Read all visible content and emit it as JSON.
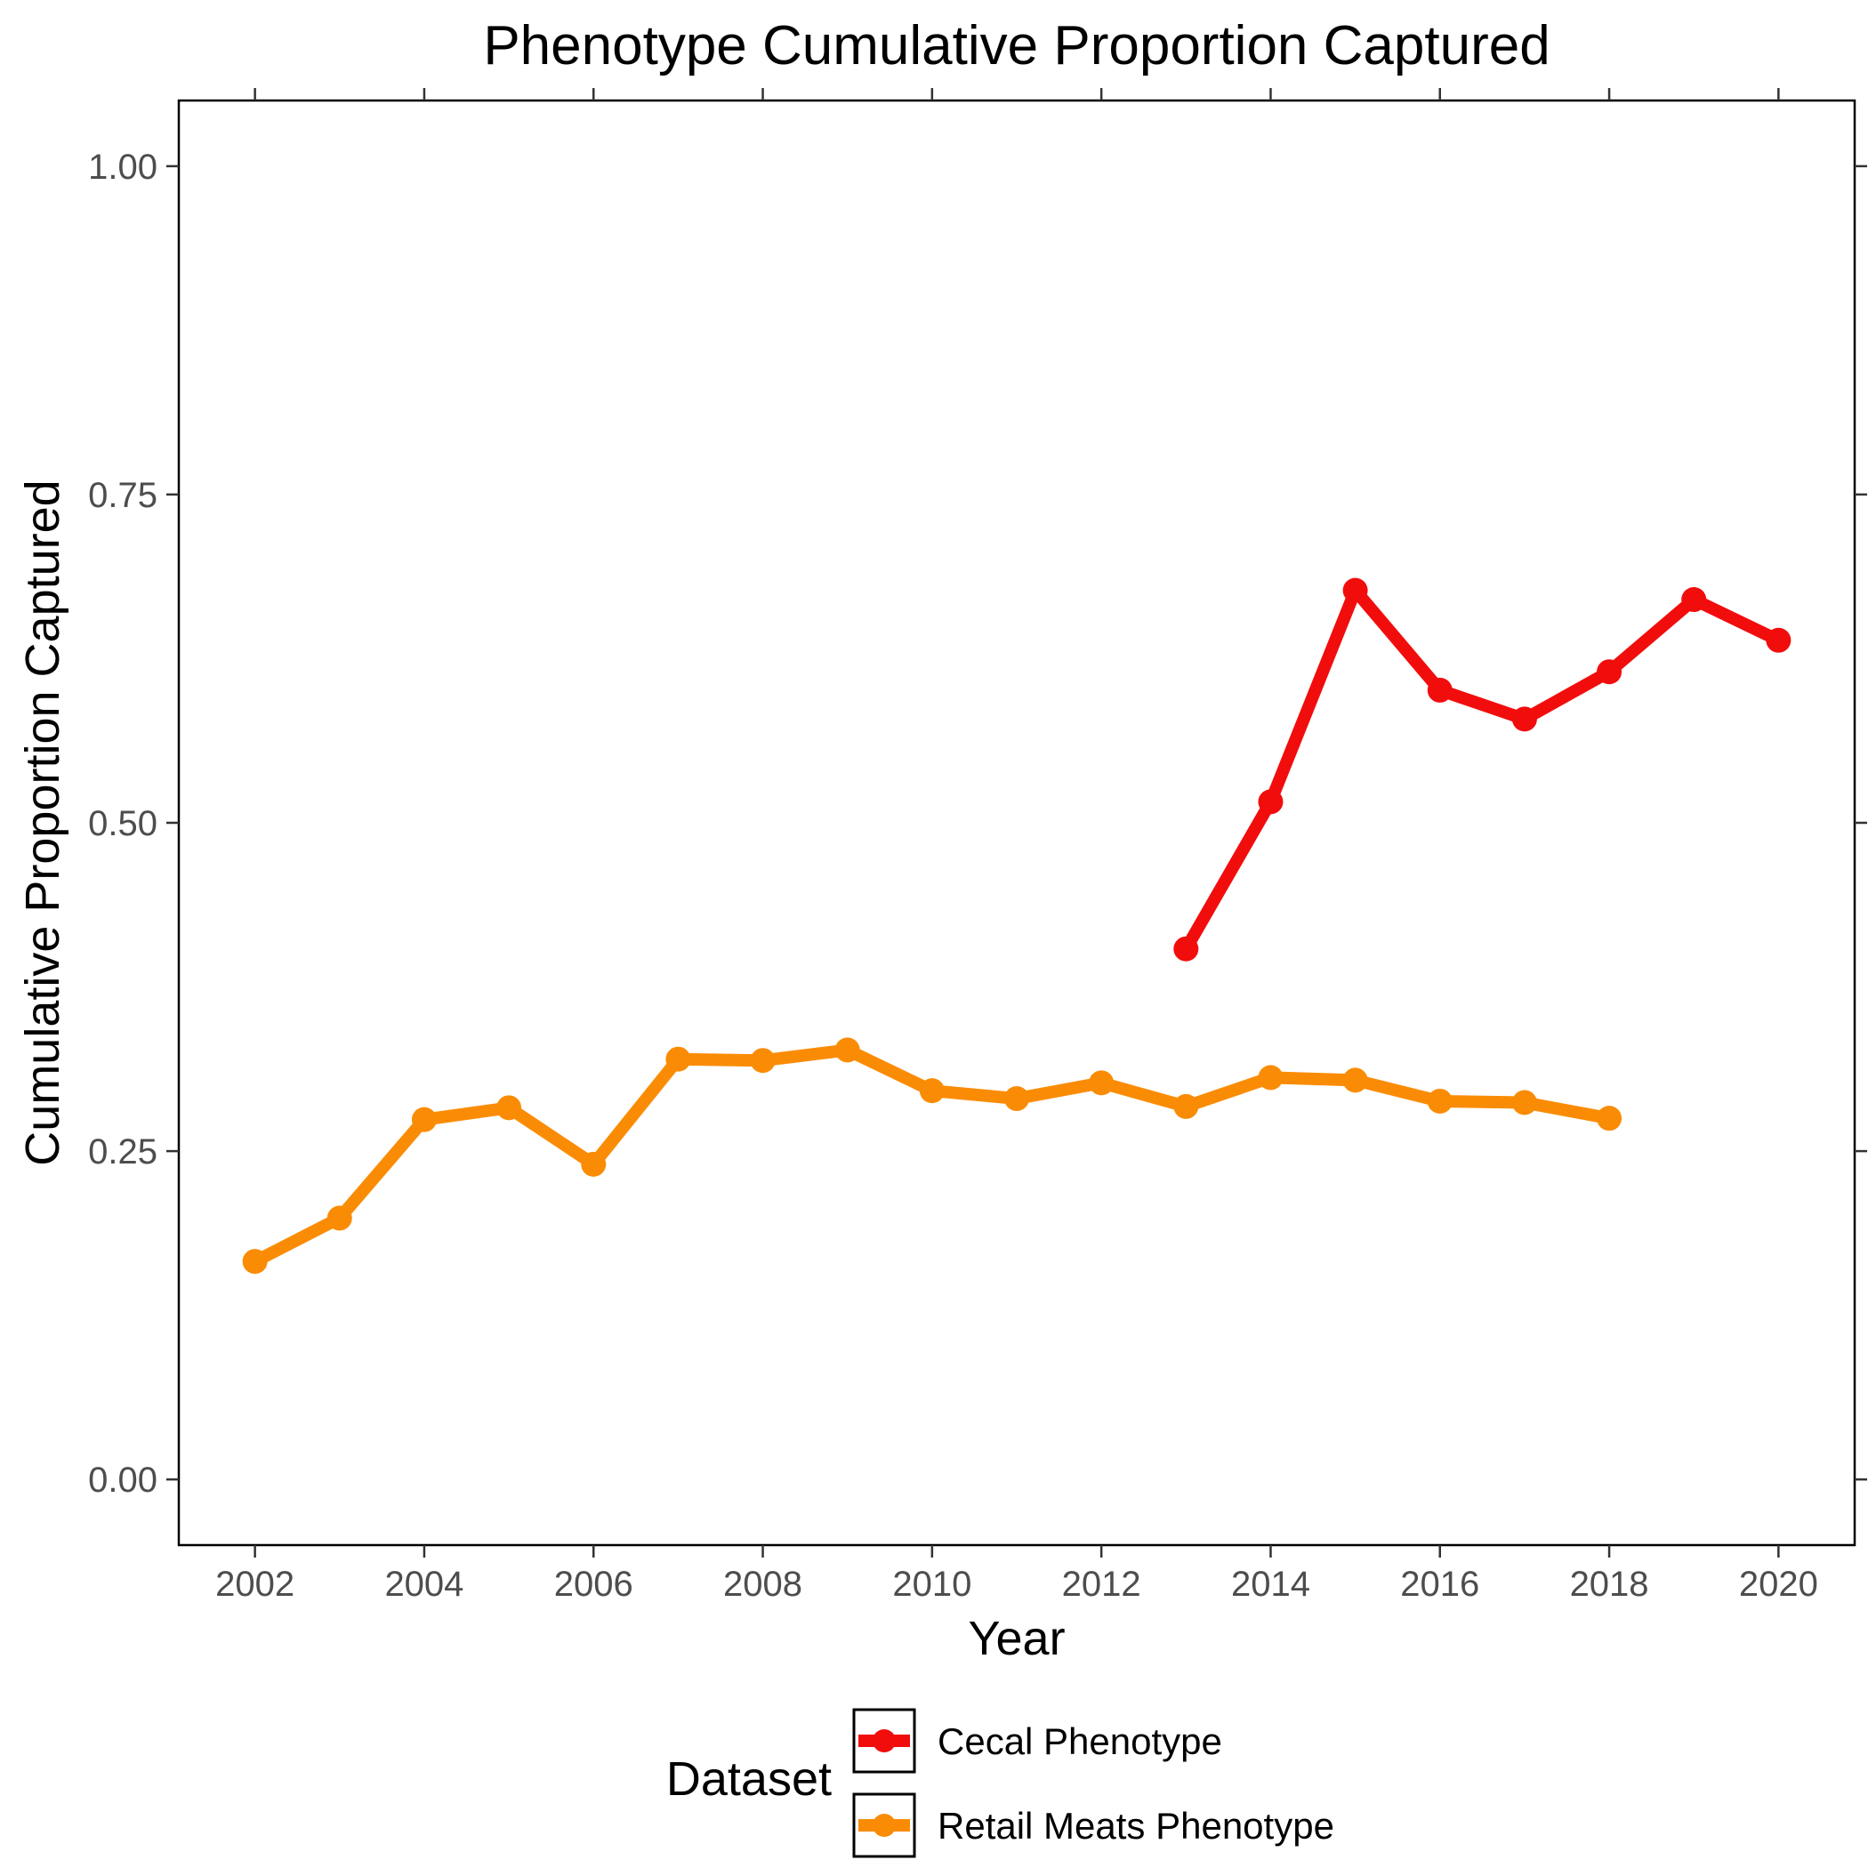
{
  "chart_data": {
    "type": "line",
    "title": "Phenotype Cumulative Proportion Captured",
    "xlabel": "Year",
    "ylabel": "Cumulative Proportion Captured",
    "xlim": [
      2001.1,
      2020.9
    ],
    "ylim": [
      -0.05,
      1.05
    ],
    "x_ticks": [
      2002,
      2004,
      2006,
      2008,
      2010,
      2012,
      2014,
      2016,
      2018,
      2020
    ],
    "x_tick_labels": [
      "2002",
      "2004",
      "2006",
      "2008",
      "2010",
      "2012",
      "2014",
      "2016",
      "2018",
      "2020"
    ],
    "y_ticks": [
      0,
      0.25,
      0.5,
      0.75,
      1.0
    ],
    "y_tick_labels": [
      "0.00",
      "0.25",
      "0.50",
      "0.75",
      "1.00"
    ],
    "grid": false,
    "legend_position": "bottom",
    "legend_title": "Dataset",
    "series": [
      {
        "name": "Cecal Phenotype",
        "color": "#f20d0d",
        "x": [
          2013,
          2014,
          2015,
          2016,
          2017,
          2018,
          2019,
          2020
        ],
        "values": [
          0.404,
          0.516,
          0.677,
          0.601,
          0.579,
          0.615,
          0.67,
          0.639
        ]
      },
      {
        "name": "Retail Meats Phenotype",
        "color": "#fa8c05",
        "x": [
          2002,
          2003,
          2004,
          2005,
          2006,
          2007,
          2008,
          2009,
          2010,
          2011,
          2012,
          2013,
          2014,
          2015,
          2016,
          2017,
          2018
        ],
        "values": [
          0.166,
          0.199,
          0.274,
          0.283,
          0.24,
          0.32,
          0.319,
          0.327,
          0.296,
          0.29,
          0.302,
          0.284,
          0.306,
          0.304,
          0.288,
          0.287,
          0.275
        ]
      }
    ]
  }
}
